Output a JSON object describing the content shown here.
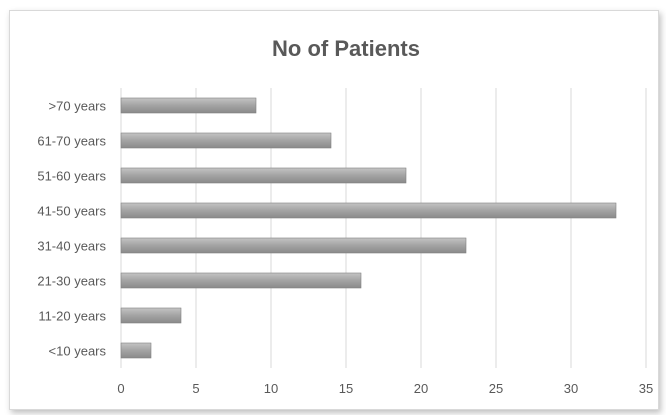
{
  "chart_data": {
    "type": "bar",
    "orientation": "horizontal",
    "title": "No of Patients",
    "xlabel": "",
    "ylabel": "",
    "categories": [
      "<10 years",
      "11-20 years",
      "21-30 years",
      "31-40 years",
      "41-50 years",
      "51-60 years",
      "61-70 years",
      ">70 years"
    ],
    "values": [
      2,
      4,
      16,
      23,
      33,
      19,
      14,
      9
    ],
    "xlim": [
      0,
      35
    ],
    "xticks": [
      "0",
      "5",
      "10",
      "15",
      "20",
      "25",
      "30",
      "35"
    ],
    "grid": "vertical",
    "legend": "none",
    "bar_color": "#a6a6a6",
    "bar_edge_color": "#808080"
  }
}
